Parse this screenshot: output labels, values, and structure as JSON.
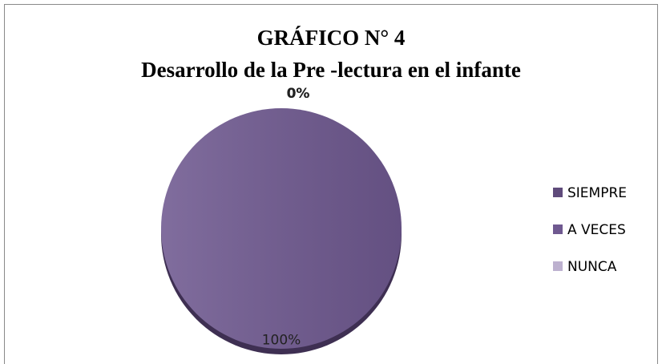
{
  "chart_data": {
    "type": "pie",
    "title": "GRÁFICO N° 4",
    "subtitle": "Desarrollo de  la Pre -lectura en el infante",
    "categories": [
      "SIEMPRE",
      "A VECES",
      "NUNCA"
    ],
    "values": [
      0,
      100,
      0
    ],
    "value_labels": [
      "0%",
      "100%",
      "0%"
    ],
    "colors": [
      "#5f4b7b",
      "#6f5990",
      "#bdb1cf"
    ],
    "legend": "right"
  }
}
